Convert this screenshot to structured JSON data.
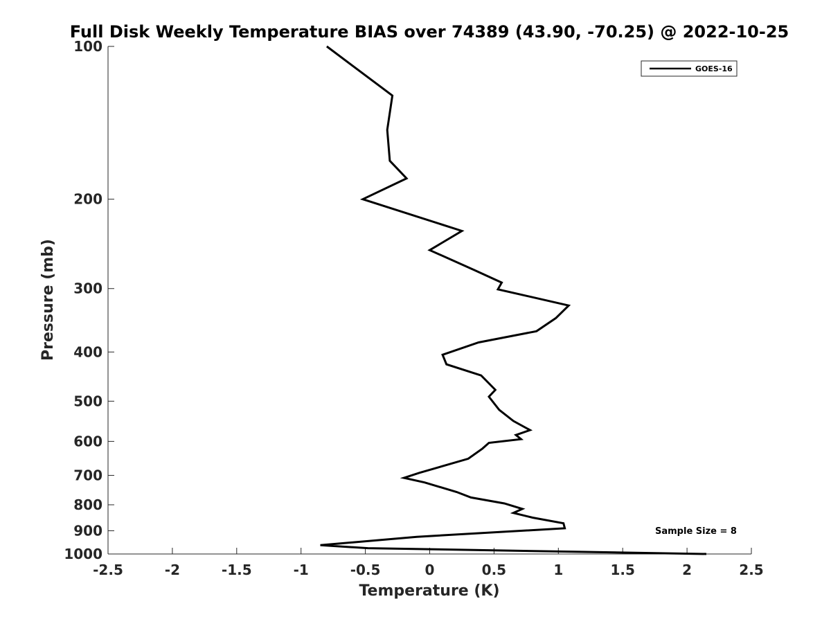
{
  "chart_data": {
    "type": "line",
    "title": "Full Disk Weekly Temperature BIAS over 74389 (43.90, -70.25) @ 2022-10-25",
    "xlabel": "Temperature (K)",
    "ylabel": "Pressure (mb)",
    "xlim": [
      -2.5,
      2.5
    ],
    "ylim": [
      100,
      1000
    ],
    "y_scale": "log",
    "y_reversed": true,
    "x_ticks": [
      -2.5,
      -2,
      -1.5,
      -1,
      -0.5,
      0,
      0.5,
      1,
      1.5,
      2,
      2.5
    ],
    "x_tick_labels": [
      "-2.5",
      "-2",
      "-1.5",
      "-1",
      "-0.5",
      "0",
      "0.5",
      "1",
      "1.5",
      "2",
      "2.5"
    ],
    "y_ticks": [
      100,
      200,
      300,
      400,
      500,
      600,
      700,
      800,
      900,
      1000
    ],
    "y_tick_labels": [
      "100",
      "200",
      "300",
      "400",
      "500",
      "600",
      "700",
      "800",
      "900",
      "1000"
    ],
    "grid": false,
    "legend_position": "top-right",
    "annotations": [
      "Sample Size = 8"
    ],
    "series": [
      {
        "name": "GOES-16",
        "color": "#000000",
        "points": [
          [
            -0.8,
            100
          ],
          [
            -0.29,
            125
          ],
          [
            -0.33,
            146
          ],
          [
            -0.31,
            168
          ],
          [
            -0.18,
            182
          ],
          [
            -0.52,
            200
          ],
          [
            0.25,
            231
          ],
          [
            0.0,
            252
          ],
          [
            0.35,
            276
          ],
          [
            0.56,
            292
          ],
          [
            0.53,
            301
          ],
          [
            1.08,
            324
          ],
          [
            0.98,
            343
          ],
          [
            0.83,
            364
          ],
          [
            0.38,
            383
          ],
          [
            0.1,
            405
          ],
          [
            0.13,
            423
          ],
          [
            0.4,
            445
          ],
          [
            0.51,
            475
          ],
          [
            0.46,
            490
          ],
          [
            0.54,
            520
          ],
          [
            0.65,
            547
          ],
          [
            0.78,
            570
          ],
          [
            0.67,
            583
          ],
          [
            0.71,
            594
          ],
          [
            0.46,
            604
          ],
          [
            0.41,
            620
          ],
          [
            0.3,
            649
          ],
          [
            -0.08,
            692
          ],
          [
            -0.2,
            708
          ],
          [
            -0.04,
            723
          ],
          [
            0.21,
            755
          ],
          [
            0.32,
            774
          ],
          [
            0.58,
            795
          ],
          [
            0.72,
            815
          ],
          [
            0.65,
            830
          ],
          [
            0.8,
            848
          ],
          [
            1.04,
            870
          ],
          [
            1.05,
            890
          ],
          [
            -0.1,
            925
          ],
          [
            -0.85,
            961
          ],
          [
            -0.48,
            974
          ],
          [
            2.15,
            1000
          ]
        ]
      }
    ]
  }
}
